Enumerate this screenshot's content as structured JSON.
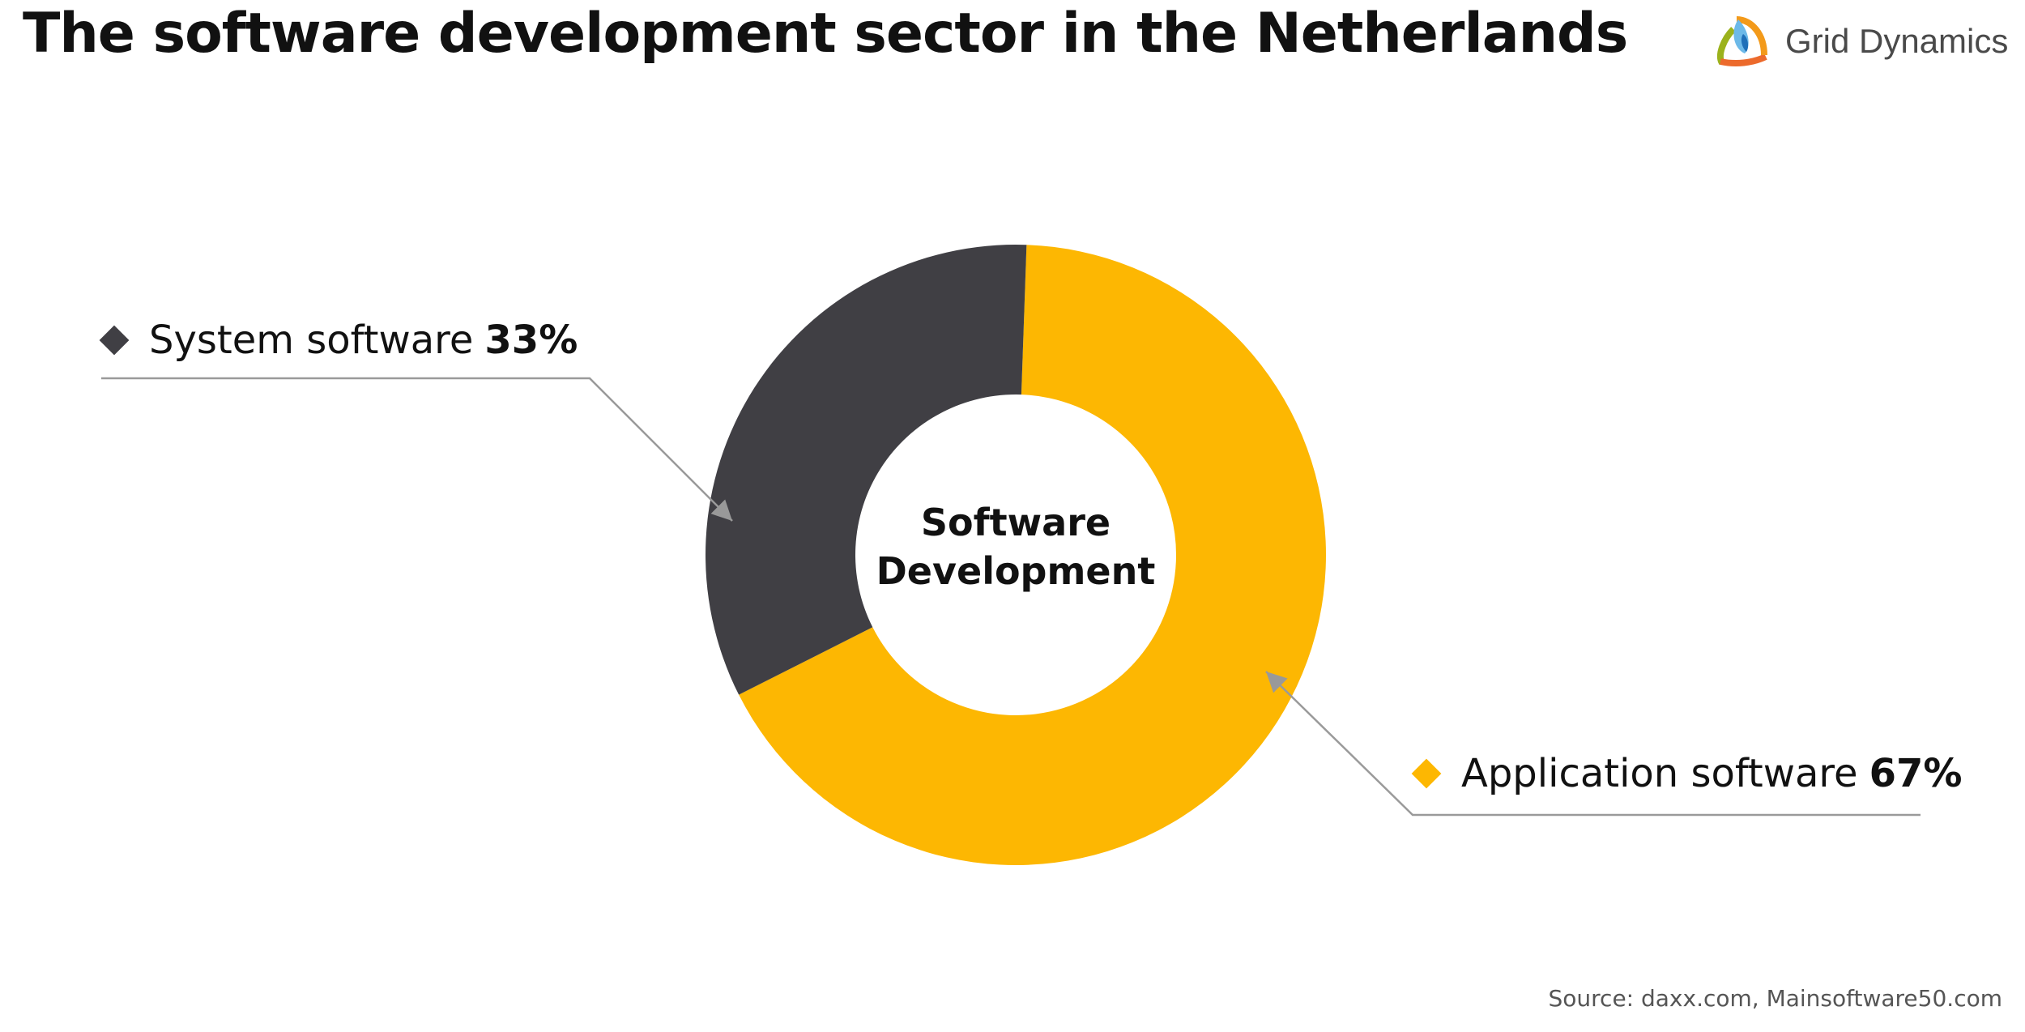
{
  "title": "The software development sector in the Netherlands",
  "logo": {
    "text": "Grid Dynamics"
  },
  "source": "Source: daxx.com, Mainsoftware50.com",
  "chart_data": {
    "type": "pie",
    "variant": "donut",
    "center_label": [
      "Software",
      "Development"
    ],
    "slices": [
      {
        "name": "Application software",
        "value": 67,
        "label": "67%",
        "color": "#fdb702"
      },
      {
        "name": "System software",
        "value": 33,
        "label": "33%",
        "color": "#403f44"
      }
    ],
    "legend": "callouts"
  }
}
